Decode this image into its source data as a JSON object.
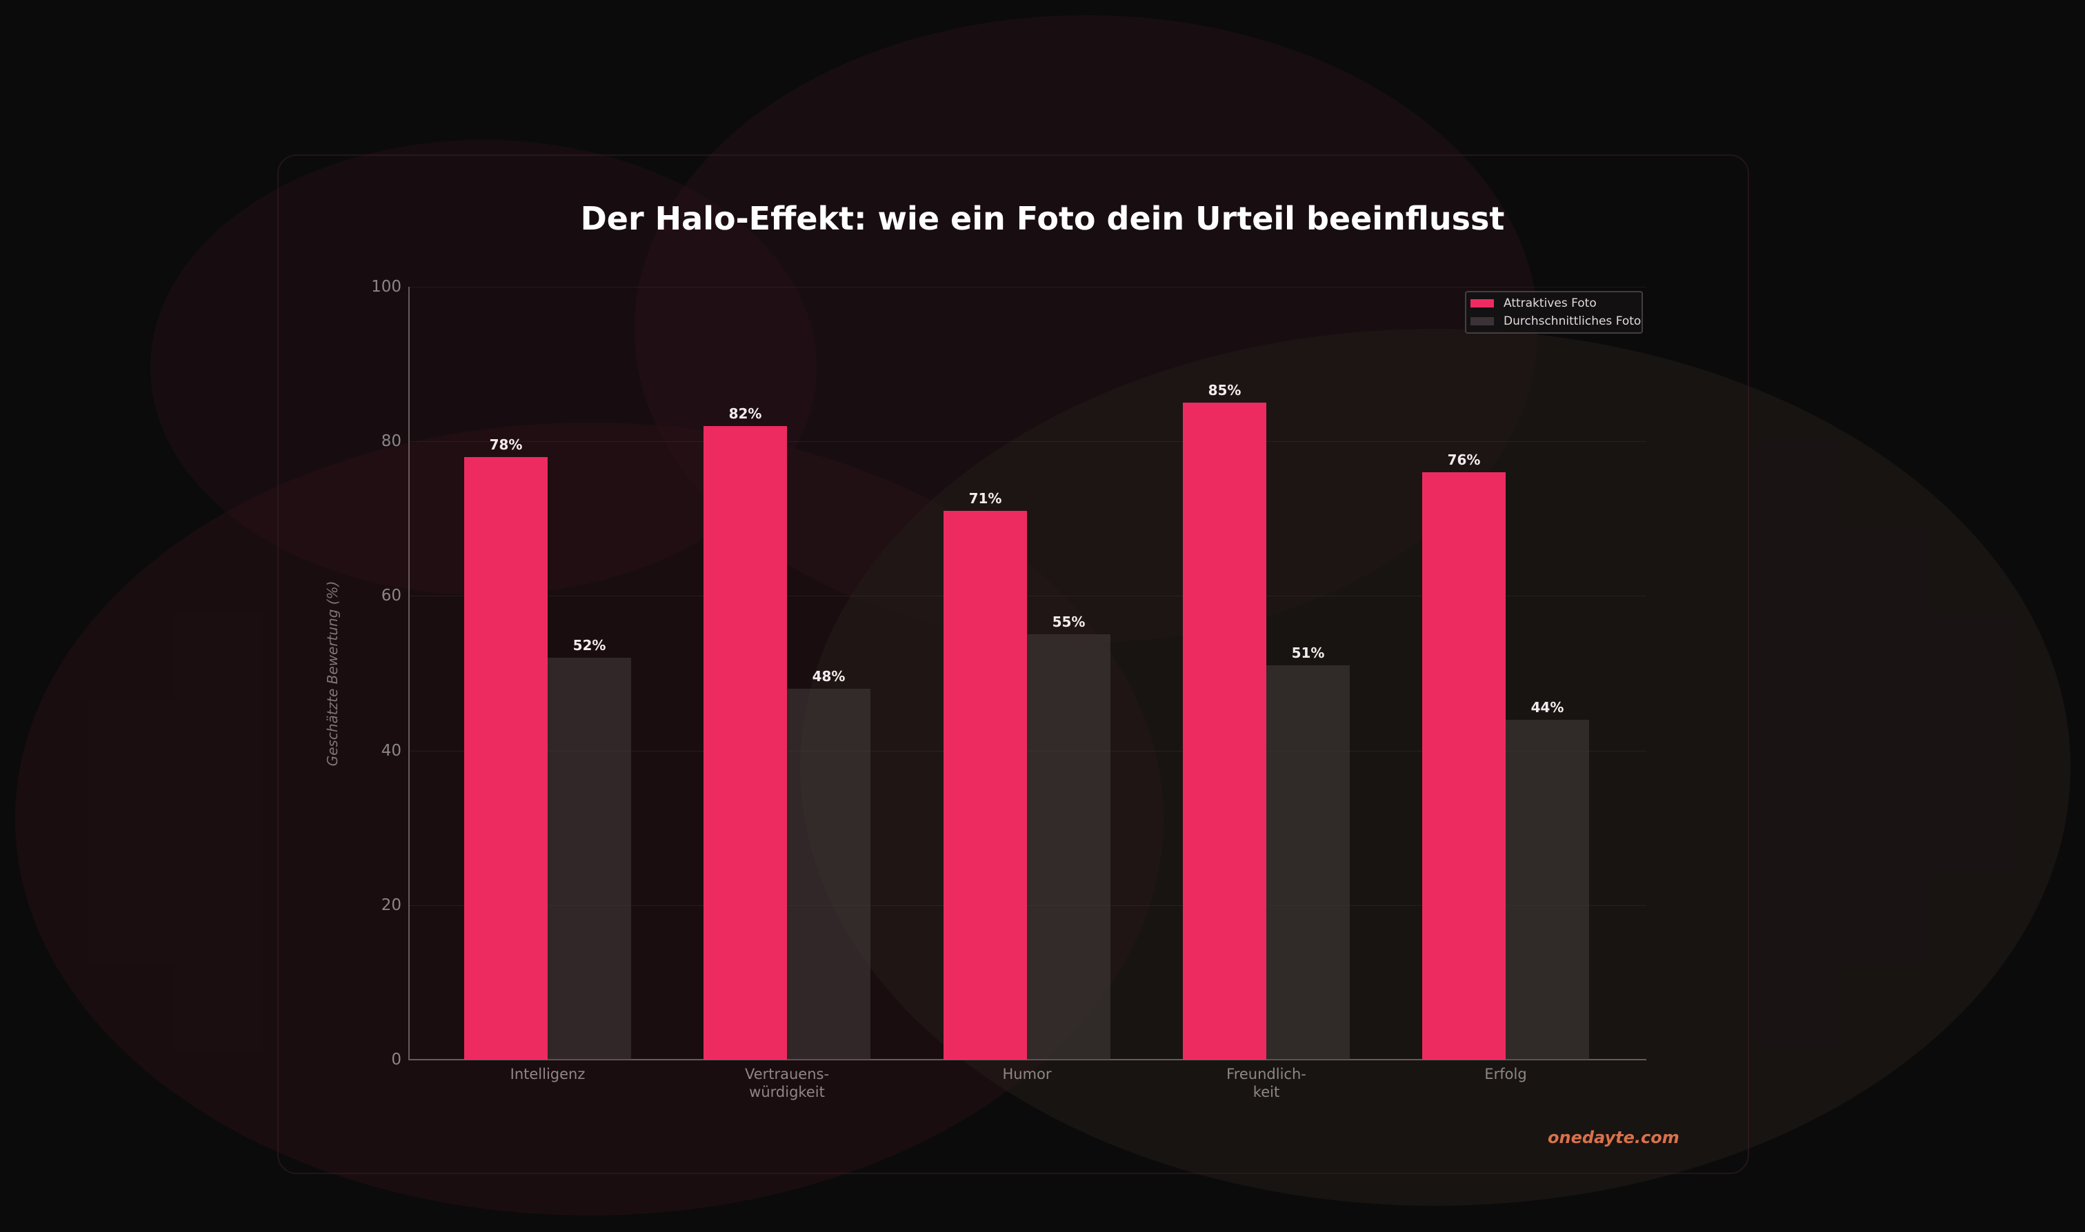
{
  "title": "Der Halo-Effekt: wie ein Foto dein Urteil beeinflusst",
  "watermark": "onedayte.com",
  "colors": {
    "background": "#0b0b0b",
    "series_attractive": "#ee2b61",
    "series_average": "#3a3234",
    "watermark": "#d9714a"
  },
  "legend": [
    {
      "label": "Attraktives Foto",
      "color": "#ee2b61"
    },
    {
      "label": "Durchschnittliches Foto",
      "color": "#3a3234"
    }
  ],
  "axis": {
    "ylabel": "Geschätzte Bewertung (%)",
    "yticks": [
      "0",
      "20",
      "40",
      "60",
      "80",
      "100"
    ]
  },
  "categories_display": [
    "Intelligenz",
    "Vertrauens-\nwürdigkeit",
    "Humor",
    "Freundlich-\nkeit",
    "Erfolg"
  ],
  "labels_a": [
    "78%",
    "82%",
    "71%",
    "85%",
    "76%"
  ],
  "labels_b": [
    "52%",
    "48%",
    "55%",
    "51%",
    "44%"
  ],
  "chart_data": {
    "type": "bar",
    "title": "Der Halo-Effekt: wie ein Foto dein Urteil beeinflusst",
    "categories": [
      "Intelligenz",
      "Vertrauenswürdigkeit",
      "Humor",
      "Freundlichkeit",
      "Erfolg"
    ],
    "series": [
      {
        "name": "Attraktives Foto",
        "values": [
          78,
          82,
          71,
          85,
          76
        ]
      },
      {
        "name": "Durchschnittliches Foto",
        "values": [
          52,
          48,
          55,
          51,
          44
        ]
      }
    ],
    "xlabel": "",
    "ylabel": "Geschätzte Bewertung (%)",
    "ylim": [
      0,
      100
    ],
    "yticks": [
      0,
      20,
      40,
      60,
      80,
      100
    ],
    "grid": true,
    "legend_position": "upper right",
    "data_labels": true
  }
}
